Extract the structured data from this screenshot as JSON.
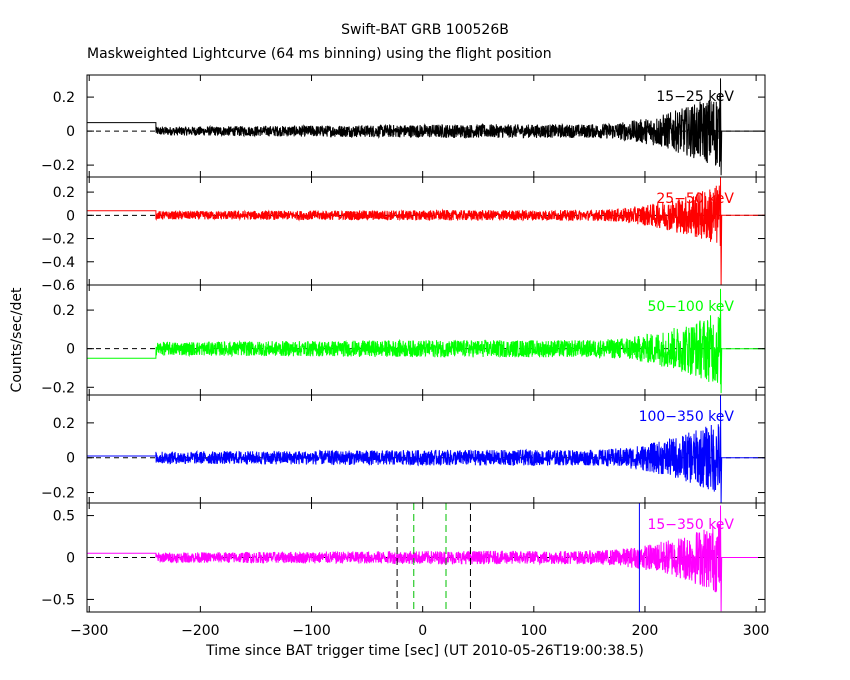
{
  "chart_data": {
    "type": "line",
    "title": "Swift-BAT GRB 100526B",
    "subtitle": "Maskweighted Lightcurve (64 ms binning) using the flight position",
    "xlabel": "Time since BAT trigger time [sec] (UT 2010-05-26T19:00:38.5)",
    "ylabel": "Counts/sec/det",
    "xlim": [
      -302,
      308
    ],
    "x_ticks": [
      -300,
      -200,
      -100,
      0,
      100,
      200,
      300
    ],
    "data_start": -240,
    "data_end": 268,
    "panels": [
      {
        "name": "15−25 keV",
        "color": "#000000",
        "ylim": [
          -0.27,
          0.33
        ],
        "y_ticks": [
          -0.2,
          0,
          0.2
        ],
        "y_tick_labels": [
          "−0.2",
          "0",
          "0.2"
        ],
        "pre_level": 0.05,
        "noise_start": 0.025,
        "noise_mid": 0.04,
        "noise_end": 0.23,
        "spike_max": 0.31,
        "spike_min": -0.26,
        "post_level": 0.0
      },
      {
        "name": "25−50 keV",
        "color": "#ff0000",
        "ylim": [
          -0.6,
          0.33
        ],
        "y_ticks": [
          -0.6,
          -0.4,
          -0.2,
          0,
          0.2
        ],
        "y_tick_labels": [
          "−0.6",
          "−0.4",
          "−0.2",
          "0",
          "0.2"
        ],
        "pre_level": 0.04,
        "noise_start": 0.035,
        "noise_mid": 0.045,
        "noise_end": 0.28,
        "spike_max": 0.33,
        "spike_min": -0.6,
        "post_level": 0.0
      },
      {
        "name": "50−100 keV",
        "color": "#00ff00",
        "ylim": [
          -0.24,
          0.33
        ],
        "y_ticks": [
          -0.2,
          0,
          0.2
        ],
        "y_tick_labels": [
          "−0.2",
          "0",
          "0.2"
        ],
        "pre_level": -0.05,
        "noise_start": 0.035,
        "noise_mid": 0.045,
        "noise_end": 0.2,
        "spike_max": 0.31,
        "spike_min": -0.23,
        "post_level": 0.0
      },
      {
        "name": "100−350 keV",
        "color": "#0000ff",
        "ylim": [
          -0.26,
          0.36
        ],
        "y_ticks": [
          -0.2,
          0,
          0.2
        ],
        "y_tick_labels": [
          "−0.2",
          "0",
          "0.2"
        ],
        "pre_level": 0.01,
        "noise_start": 0.035,
        "noise_mid": 0.045,
        "noise_end": 0.22,
        "spike_max": 0.36,
        "spike_min": -0.26,
        "post_level": 0.0
      },
      {
        "name": "15−350 keV",
        "color": "#ff00ff",
        "ylim": [
          -0.65,
          0.65
        ],
        "y_ticks": [
          -0.5,
          0,
          0.5
        ],
        "y_tick_labels": [
          "−0.5",
          "0",
          "0.5"
        ],
        "pre_level": 0.05,
        "noise_start": 0.06,
        "noise_mid": 0.08,
        "noise_end": 0.45,
        "spike_max": 0.62,
        "spike_min": -0.64,
        "post_level": 0.0
      }
    ],
    "markers": {
      "black_dashed_x": [
        -23,
        43
      ],
      "green_dashed_x": [
        -8,
        21
      ],
      "blue_solid_x": [
        195
      ]
    }
  }
}
